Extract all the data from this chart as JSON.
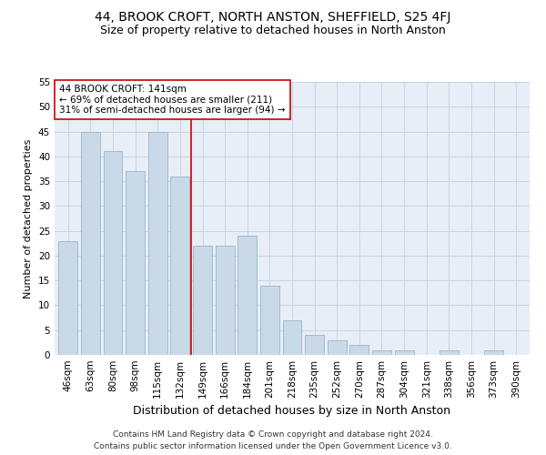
{
  "title": "44, BROOK CROFT, NORTH ANSTON, SHEFFIELD, S25 4FJ",
  "subtitle": "Size of property relative to detached houses in North Anston",
  "xlabel": "Distribution of detached houses by size in North Anston",
  "ylabel": "Number of detached properties",
  "categories": [
    "46sqm",
    "63sqm",
    "80sqm",
    "98sqm",
    "115sqm",
    "132sqm",
    "149sqm",
    "166sqm",
    "184sqm",
    "201sqm",
    "218sqm",
    "235sqm",
    "252sqm",
    "270sqm",
    "287sqm",
    "304sqm",
    "321sqm",
    "338sqm",
    "356sqm",
    "373sqm",
    "390sqm"
  ],
  "values": [
    23,
    45,
    41,
    37,
    45,
    36,
    22,
    22,
    24,
    14,
    7,
    4,
    3,
    2,
    1,
    1,
    0,
    1,
    0,
    1,
    0
  ],
  "bar_color": "#c9d9e8",
  "bar_edge_color": "#9ab4cc",
  "vline_x_index": 5.5,
  "vline_color": "#cc0000",
  "annotation_text": "44 BROOK CROFT: 141sqm\n← 69% of detached houses are smaller (211)\n31% of semi-detached houses are larger (94) →",
  "annotation_box_color": "white",
  "annotation_box_edge_color": "#cc0000",
  "ylim": [
    0,
    55
  ],
  "yticks": [
    0,
    5,
    10,
    15,
    20,
    25,
    30,
    35,
    40,
    45,
    50,
    55
  ],
  "footer_line1": "Contains HM Land Registry data © Crown copyright and database right 2024.",
  "footer_line2": "Contains public sector information licensed under the Open Government Licence v3.0.",
  "grid_color": "#c8d4e4",
  "background_color": "#e8eef6",
  "title_fontsize": 10,
  "subtitle_fontsize": 9,
  "xlabel_fontsize": 9,
  "ylabel_fontsize": 8,
  "tick_fontsize": 7.5,
  "annotation_fontsize": 7.5,
  "footer_fontsize": 6.5
}
